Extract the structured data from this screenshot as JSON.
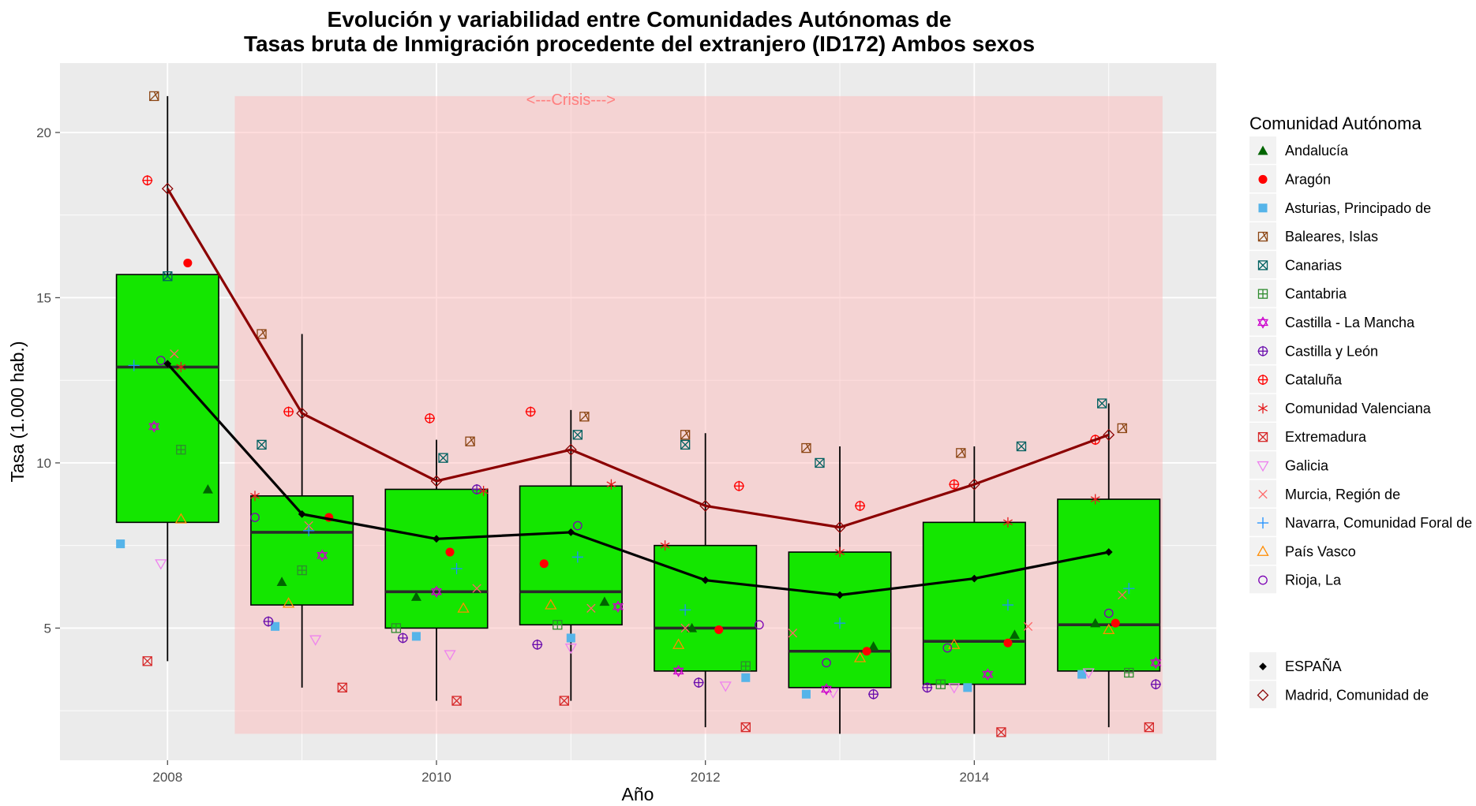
{
  "chart_data": {
    "type": "box",
    "title": [
      "Evolución y variabilidad entre Comunidades Autónomas de",
      "Tasas bruta de Inmigración procedente del extranjero (ID172) Ambos sexos"
    ],
    "xlabel": "Año",
    "ylabel": "Tasa (1.000 hab.)",
    "xlim": [
      2007.2,
      2015.8
    ],
    "ylim": [
      1.0,
      22.1
    ],
    "x_ticks": [
      2008,
      2010,
      2012,
      2014
    ],
    "y_ticks": [
      5,
      10,
      15,
      20
    ],
    "grid": true,
    "annotation": {
      "text": "<---Crisis--->",
      "x": 2011.0,
      "y": 21.0,
      "color": "#ff7f7f"
    },
    "shaded_region": {
      "x": [
        2008.5,
        2015.4
      ],
      "y": [
        1.8,
        21.1
      ],
      "color": "#ffb6b6"
    },
    "boxplots": [
      {
        "x": 2008,
        "whisker_low": 4.0,
        "q1": 8.2,
        "median": 12.9,
        "q3": 15.7,
        "whisker_high": 21.1
      },
      {
        "x": 2009,
        "whisker_low": 3.2,
        "q1": 5.7,
        "median": 7.9,
        "q3": 9.0,
        "whisker_high": 13.9
      },
      {
        "x": 2010,
        "whisker_low": 2.8,
        "q1": 5.0,
        "median": 6.1,
        "q3": 9.2,
        "whisker_high": 10.7
      },
      {
        "x": 2011,
        "whisker_low": 2.8,
        "q1": 5.1,
        "median": 6.1,
        "q3": 9.3,
        "whisker_high": 11.6
      },
      {
        "x": 2012,
        "whisker_low": 2.0,
        "q1": 3.7,
        "median": 5.0,
        "q3": 7.5,
        "whisker_high": 10.9
      },
      {
        "x": 2013,
        "whisker_low": 1.8,
        "q1": 3.2,
        "median": 4.3,
        "q3": 7.3,
        "whisker_high": 10.5
      },
      {
        "x": 2014,
        "whisker_low": 1.8,
        "q1": 3.3,
        "median": 4.6,
        "q3": 8.2,
        "whisker_high": 10.5
      },
      {
        "x": 2015,
        "whisker_low": 2.0,
        "q1": 3.7,
        "median": 5.1,
        "q3": 8.9,
        "whisker_high": 11.8
      }
    ],
    "box_fill": "#14e600",
    "lines": [
      {
        "name": "ESPAÑA",
        "color": "#000000",
        "marker": "diamond-filled",
        "x": [
          2008,
          2009,
          2010,
          2011,
          2012,
          2013,
          2014,
          2015
        ],
        "y": [
          13.0,
          8.45,
          7.7,
          7.9,
          6.45,
          6.0,
          6.5,
          7.3
        ]
      },
      {
        "name": "Madrid, Comunidad de",
        "color": "#8b0000",
        "marker": "diamond-open",
        "x": [
          2008,
          2009,
          2010,
          2011,
          2012,
          2013,
          2014,
          2015
        ],
        "y": [
          18.3,
          11.5,
          9.45,
          10.4,
          8.7,
          8.05,
          9.35,
          10.85
        ]
      }
    ],
    "legend_title": "Comunidad Autónoma",
    "legend_position": "right",
    "series": [
      {
        "name": "Andalucía",
        "color": "#006400",
        "marker": "triangle-filled",
        "points": [
          [
            2008.3,
            9.2
          ],
          [
            2008.85,
            6.4
          ],
          [
            2009.85,
            5.95
          ],
          [
            2011.25,
            5.8
          ],
          [
            2011.9,
            5.0
          ],
          [
            2013.25,
            4.45
          ],
          [
            2014.3,
            4.8
          ],
          [
            2014.9,
            5.15
          ]
        ]
      },
      {
        "name": "Aragón",
        "color": "#ff0000",
        "marker": "circle-filled",
        "points": [
          [
            2008.15,
            16.05
          ],
          [
            2009.2,
            8.35
          ],
          [
            2010.1,
            7.3
          ],
          [
            2010.8,
            6.95
          ],
          [
            2012.1,
            4.95
          ],
          [
            2013.2,
            4.3
          ],
          [
            2014.25,
            4.55
          ],
          [
            2015.05,
            5.15
          ]
        ]
      },
      {
        "name": "Asturias, Principado de",
        "color": "#56b4e9",
        "marker": "square-filled",
        "points": [
          [
            2007.65,
            7.55
          ],
          [
            2008.8,
            5.05
          ],
          [
            2009.85,
            4.75
          ],
          [
            2011.0,
            4.7
          ],
          [
            2012.3,
            3.5
          ],
          [
            2012.75,
            3.0
          ],
          [
            2013.95,
            3.2
          ],
          [
            2014.8,
            3.6
          ]
        ]
      },
      {
        "name": "Baleares, Islas",
        "color": "#8b4513",
        "marker": "square-cross",
        "points": [
          [
            2007.9,
            21.1
          ],
          [
            2008.7,
            13.9
          ],
          [
            2010.25,
            10.65
          ],
          [
            2011.1,
            11.4
          ],
          [
            2011.85,
            10.85
          ],
          [
            2012.75,
            10.45
          ],
          [
            2013.9,
            10.3
          ],
          [
            2015.1,
            11.05
          ]
        ]
      },
      {
        "name": "Canarias",
        "color": "#006060",
        "marker": "square-x",
        "points": [
          [
            2008.0,
            15.65
          ],
          [
            2008.7,
            10.55
          ],
          [
            2010.05,
            10.15
          ],
          [
            2011.05,
            10.85
          ],
          [
            2011.85,
            10.55
          ],
          [
            2012.85,
            10.0
          ],
          [
            2014.35,
            10.5
          ],
          [
            2014.95,
            11.8
          ]
        ]
      },
      {
        "name": "Cantabria",
        "color": "#2e8b2e",
        "marker": "square-plus",
        "points": [
          [
            2008.1,
            10.4
          ],
          [
            2009.0,
            6.75
          ],
          [
            2009.7,
            5.0
          ],
          [
            2010.9,
            5.1
          ],
          [
            2012.3,
            3.85
          ],
          [
            2013.75,
            3.3
          ],
          [
            2015.15,
            3.65
          ]
        ]
      },
      {
        "name": "Castilla - La Mancha",
        "color": "#cc00cc",
        "marker": "star-of-david",
        "points": [
          [
            2007.9,
            11.1
          ],
          [
            2009.15,
            7.2
          ],
          [
            2010.0,
            6.1
          ],
          [
            2011.35,
            5.65
          ],
          [
            2011.8,
            3.7
          ],
          [
            2012.9,
            3.15
          ],
          [
            2014.1,
            3.6
          ],
          [
            2015.35,
            3.95
          ]
        ]
      },
      {
        "name": "Castilla y León",
        "color": "#6a0dad",
        "marker": "circle-plus",
        "points": [
          [
            2008.75,
            5.2
          ],
          [
            2009.75,
            4.7
          ],
          [
            2010.3,
            9.2
          ],
          [
            2010.75,
            4.5
          ],
          [
            2011.95,
            3.35
          ],
          [
            2013.25,
            3.0
          ],
          [
            2013.65,
            3.2
          ],
          [
            2015.35,
            3.3
          ]
        ]
      },
      {
        "name": "Cataluña",
        "color": "#ff0000",
        "marker": "circle-plus",
        "points": [
          [
            2007.85,
            18.55
          ],
          [
            2008.9,
            11.55
          ],
          [
            2009.95,
            11.35
          ],
          [
            2010.7,
            11.55
          ],
          [
            2012.25,
            9.3
          ],
          [
            2013.15,
            8.7
          ],
          [
            2013.85,
            9.35
          ],
          [
            2014.9,
            10.7
          ]
        ]
      },
      {
        "name": "Comunidad Valenciana",
        "color": "#e41a1c",
        "marker": "asterisk",
        "points": [
          [
            2008.1,
            12.9
          ],
          [
            2008.65,
            9.0
          ],
          [
            2010.35,
            9.15
          ],
          [
            2011.3,
            9.35
          ],
          [
            2011.7,
            7.5
          ],
          [
            2013.0,
            7.3
          ],
          [
            2014.25,
            8.2
          ],
          [
            2014.9,
            8.9
          ]
        ]
      },
      {
        "name": "Extremadura",
        "color": "#d62728",
        "marker": "square-x",
        "points": [
          [
            2007.85,
            4.0
          ],
          [
            2009.3,
            3.2
          ],
          [
            2010.15,
            2.8
          ],
          [
            2010.95,
            2.8
          ],
          [
            2012.3,
            2.0
          ],
          [
            2014.2,
            1.85
          ],
          [
            2015.3,
            2.0
          ]
        ]
      },
      {
        "name": "Galicia",
        "color": "#ee82ee",
        "marker": "triangle-down-open",
        "points": [
          [
            2007.95,
            6.95
          ],
          [
            2009.1,
            4.65
          ],
          [
            2010.1,
            4.2
          ],
          [
            2011.0,
            4.4
          ],
          [
            2012.15,
            3.25
          ],
          [
            2012.95,
            3.05
          ],
          [
            2013.85,
            3.2
          ],
          [
            2014.85,
            3.65
          ]
        ]
      },
      {
        "name": "Murcia, Región de",
        "color": "#ff6666",
        "marker": "x",
        "points": [
          [
            2008.05,
            13.3
          ],
          [
            2009.05,
            8.1
          ],
          [
            2010.3,
            6.2
          ],
          [
            2011.15,
            5.6
          ],
          [
            2011.85,
            5.0
          ],
          [
            2012.65,
            4.85
          ],
          [
            2014.4,
            5.05
          ],
          [
            2015.1,
            6.0
          ]
        ]
      },
      {
        "name": "Navarra, Comunidad Foral de",
        "color": "#1e90ff",
        "marker": "plus",
        "points": [
          [
            2007.75,
            12.95
          ],
          [
            2009.05,
            7.95
          ],
          [
            2010.15,
            6.8
          ],
          [
            2011.05,
            7.15
          ],
          [
            2011.85,
            5.55
          ],
          [
            2013.0,
            5.15
          ],
          [
            2014.25,
            5.7
          ],
          [
            2015.15,
            6.2
          ]
        ]
      },
      {
        "name": "País Vasco",
        "color": "#ff8c00",
        "marker": "triangle-open",
        "points": [
          [
            2008.1,
            8.3
          ],
          [
            2008.9,
            5.75
          ],
          [
            2010.2,
            5.6
          ],
          [
            2010.85,
            5.7
          ],
          [
            2011.8,
            4.5
          ],
          [
            2013.15,
            4.1
          ],
          [
            2013.85,
            4.5
          ],
          [
            2015.0,
            4.95
          ]
        ]
      },
      {
        "name": "Rioja, La",
        "color": "#7b00b4",
        "marker": "circle-open",
        "points": [
          [
            2007.95,
            13.1
          ],
          [
            2008.65,
            8.35
          ],
          [
            2011.05,
            8.1
          ],
          [
            2012.4,
            5.1
          ],
          [
            2012.9,
            3.95
          ],
          [
            2013.8,
            4.4
          ],
          [
            2015.0,
            5.45
          ]
        ]
      }
    ],
    "extra_legend": [
      {
        "name": "ESPAÑA",
        "marker": "diamond-filled",
        "color": "#000000"
      },
      {
        "name": "Madrid, Comunidad de",
        "marker": "diamond-open",
        "color": "#8b0000"
      }
    ]
  }
}
